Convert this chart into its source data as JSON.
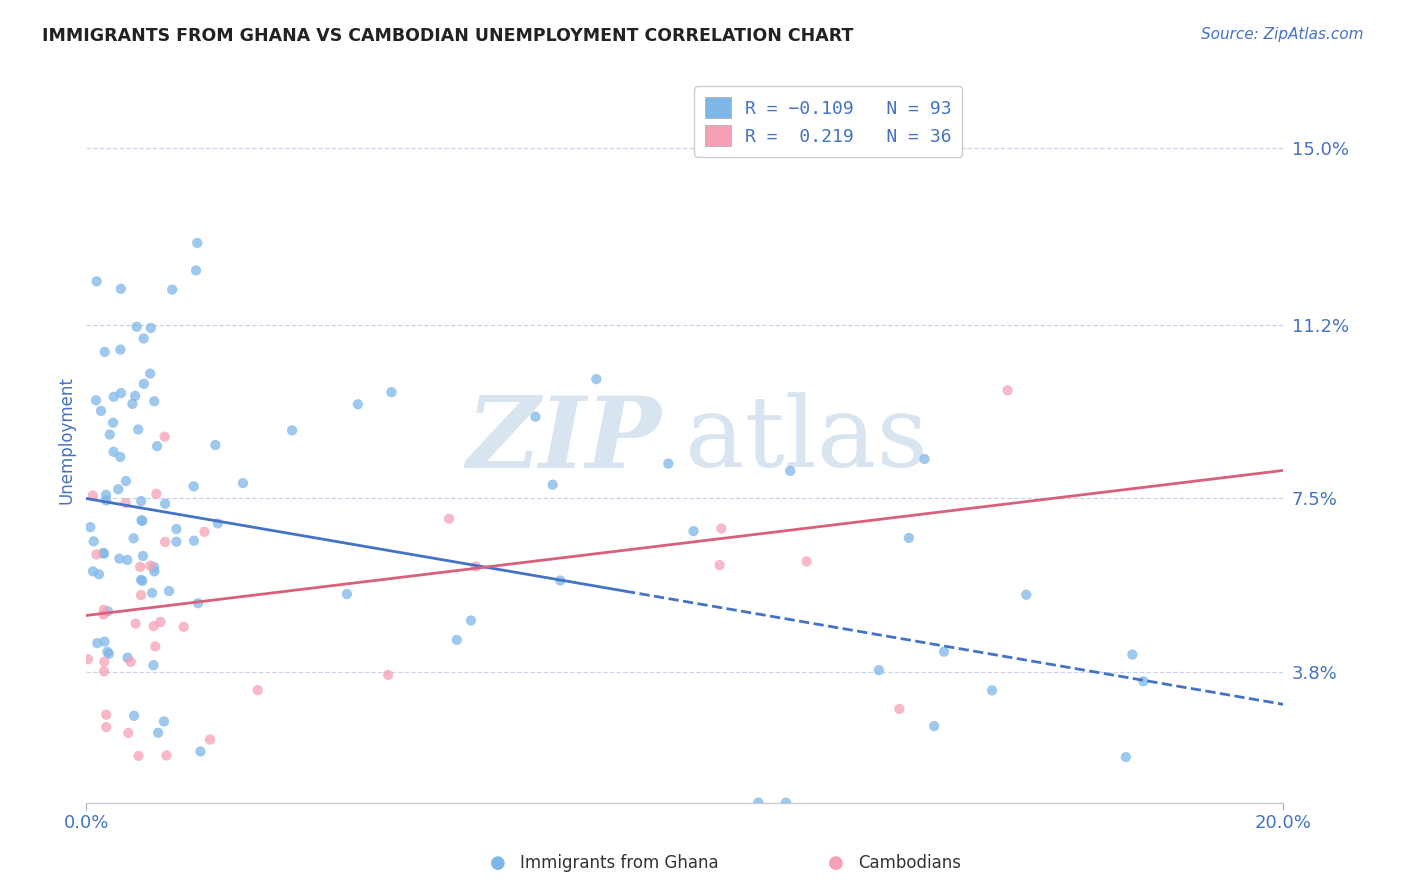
{
  "title": "IMMIGRANTS FROM GHANA VS CAMBODIAN UNEMPLOYMENT CORRELATION CHART",
  "source": "Source: ZipAtlas.com",
  "ylabel": "Unemployment",
  "xlim": [
    0.0,
    0.2
  ],
  "ylim": [
    0.01,
    0.165
  ],
  "yticks": [
    0.038,
    0.075,
    0.112,
    0.15
  ],
  "ytick_labels": [
    "3.8%",
    "7.5%",
    "11.2%",
    "15.0%"
  ],
  "xticks": [
    0.0,
    0.2
  ],
  "xtick_labels": [
    "0.0%",
    "20.0%"
  ],
  "ghana_color": "#7eb6e8",
  "cambodian_color": "#f5a0b5",
  "ghana_line_color": "#4472c4",
  "cambodian_line_color": "#d9607a",
  "background_color": "#ffffff",
  "grid_color": "#c8d4e8",
  "title_color": "#222222",
  "axis_label_color": "#4472c4",
  "watermark_color": "#d8e4f0",
  "ghana_intercept": 0.075,
  "ghana_slope": -0.22,
  "cambodian_intercept": 0.05,
  "cambodian_slope": 0.155,
  "ghana_crossover": 0.09,
  "legend_label_color": "#4472c4"
}
